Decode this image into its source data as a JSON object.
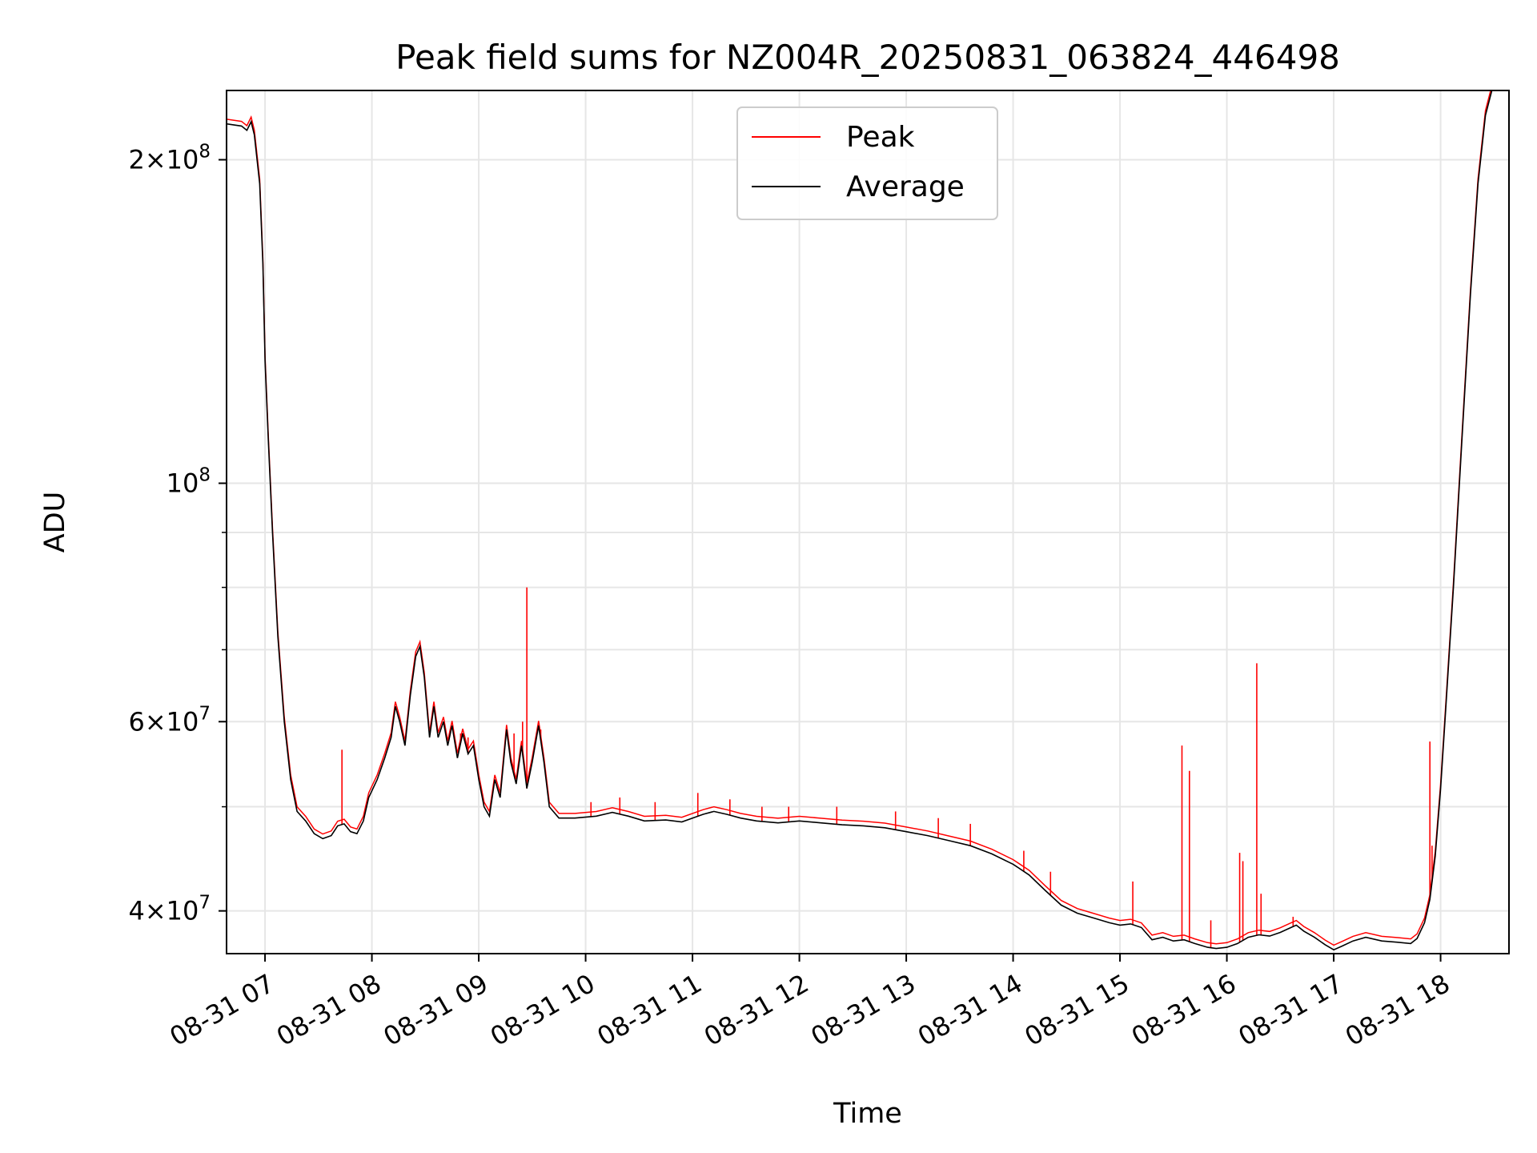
{
  "chart_data": {
    "type": "line",
    "title": "Peak field sums for NZ004R_20250831_063824_446498",
    "xlabel": "Time",
    "ylabel": "ADU",
    "yscale": "log",
    "xlim": [
      6.64,
      18.64
    ],
    "ylim": [
      36500000,
      232000000
    ],
    "grid": true,
    "legend_position": "upper center",
    "x_ticks": [
      {
        "value": 7,
        "label": "08-31 07"
      },
      {
        "value": 8,
        "label": "08-31 08"
      },
      {
        "value": 9,
        "label": "08-31 09"
      },
      {
        "value": 10,
        "label": "08-31 10"
      },
      {
        "value": 11,
        "label": "08-31 11"
      },
      {
        "value": 12,
        "label": "08-31 12"
      },
      {
        "value": 13,
        "label": "08-31 13"
      },
      {
        "value": 14,
        "label": "08-31 14"
      },
      {
        "value": 15,
        "label": "08-31 15"
      },
      {
        "value": 16,
        "label": "08-31 16"
      },
      {
        "value": 17,
        "label": "08-31 17"
      },
      {
        "value": 18,
        "label": "08-31 18"
      }
    ],
    "y_ticks": [
      {
        "value": 40000000,
        "base": "4",
        "exp": "7"
      },
      {
        "value": 60000000,
        "base": "6",
        "exp": "7"
      },
      {
        "value": 100000000,
        "base": "",
        "exp": "8"
      },
      {
        "value": 200000000,
        "base": "2",
        "exp": "8"
      }
    ],
    "y_minor_ticks": [
      50000000,
      70000000,
      80000000,
      90000000
    ],
    "series": [
      {
        "name": "Average",
        "color": "#000000",
        "points": [
          [
            6.64,
            216000000
          ],
          [
            6.78,
            215000000
          ],
          [
            6.83,
            213000000
          ],
          [
            6.87,
            217000000
          ],
          [
            6.9,
            211000000
          ],
          [
            6.95,
            190000000
          ],
          [
            6.98,
            160000000
          ],
          [
            7.0,
            130000000
          ],
          [
            7.03,
            110000000
          ],
          [
            7.07,
            90000000
          ],
          [
            7.12,
            72000000
          ],
          [
            7.18,
            60000000
          ],
          [
            7.24,
            53000000
          ],
          [
            7.3,
            49500000
          ],
          [
            7.38,
            48500000
          ],
          [
            7.46,
            47200000
          ],
          [
            7.54,
            46700000
          ],
          [
            7.62,
            47000000
          ],
          [
            7.68,
            48000000
          ],
          [
            7.74,
            48200000
          ],
          [
            7.8,
            47400000
          ],
          [
            7.86,
            47200000
          ],
          [
            7.92,
            48500000
          ],
          [
            7.97,
            51000000
          ],
          [
            8.05,
            53000000
          ],
          [
            8.12,
            55500000
          ],
          [
            8.18,
            58000000
          ],
          [
            8.22,
            62000000
          ],
          [
            8.26,
            60000000
          ],
          [
            8.31,
            57000000
          ],
          [
            8.36,
            63500000
          ],
          [
            8.41,
            69000000
          ],
          [
            8.45,
            70500000
          ],
          [
            8.49,
            66000000
          ],
          [
            8.54,
            58000000
          ],
          [
            8.58,
            62000000
          ],
          [
            8.62,
            58000000
          ],
          [
            8.67,
            60000000
          ],
          [
            8.71,
            57000000
          ],
          [
            8.75,
            59500000
          ],
          [
            8.8,
            55500000
          ],
          [
            8.85,
            58500000
          ],
          [
            8.9,
            56000000
          ],
          [
            8.95,
            57000000
          ],
          [
            9.0,
            53000000
          ],
          [
            9.05,
            50000000
          ],
          [
            9.1,
            49000000
          ],
          [
            9.15,
            53000000
          ],
          [
            9.2,
            51000000
          ],
          [
            9.26,
            59000000
          ],
          [
            9.3,
            55000000
          ],
          [
            9.35,
            52500000
          ],
          [
            9.4,
            57000000
          ],
          [
            9.45,
            52000000
          ],
          [
            9.5,
            55000000
          ],
          [
            9.56,
            59500000
          ],
          [
            9.61,
            55000000
          ],
          [
            9.66,
            50000000
          ],
          [
            9.75,
            48800000
          ],
          [
            9.9,
            48800000
          ],
          [
            10.1,
            49000000
          ],
          [
            10.25,
            49400000
          ],
          [
            10.4,
            49000000
          ],
          [
            10.55,
            48500000
          ],
          [
            10.75,
            48600000
          ],
          [
            10.9,
            48400000
          ],
          [
            11.0,
            48800000
          ],
          [
            11.1,
            49200000
          ],
          [
            11.2,
            49500000
          ],
          [
            11.32,
            49200000
          ],
          [
            11.45,
            48800000
          ],
          [
            11.6,
            48500000
          ],
          [
            11.8,
            48300000
          ],
          [
            12.0,
            48500000
          ],
          [
            12.2,
            48300000
          ],
          [
            12.4,
            48100000
          ],
          [
            12.6,
            48000000
          ],
          [
            12.8,
            47800000
          ],
          [
            13.0,
            47400000
          ],
          [
            13.2,
            47000000
          ],
          [
            13.4,
            46500000
          ],
          [
            13.6,
            46000000
          ],
          [
            13.8,
            45200000
          ],
          [
            14.0,
            44200000
          ],
          [
            14.15,
            43200000
          ],
          [
            14.3,
            41800000
          ],
          [
            14.45,
            40500000
          ],
          [
            14.6,
            39800000
          ],
          [
            14.75,
            39400000
          ],
          [
            14.9,
            39000000
          ],
          [
            15.0,
            38800000
          ],
          [
            15.1,
            38900000
          ],
          [
            15.2,
            38600000
          ],
          [
            15.3,
            37600000
          ],
          [
            15.4,
            37800000
          ],
          [
            15.5,
            37500000
          ],
          [
            15.6,
            37600000
          ],
          [
            15.7,
            37300000
          ],
          [
            15.82,
            37000000
          ],
          [
            15.9,
            36900000
          ],
          [
            16.0,
            37000000
          ],
          [
            16.1,
            37300000
          ],
          [
            16.2,
            37800000
          ],
          [
            16.3,
            38000000
          ],
          [
            16.4,
            37900000
          ],
          [
            16.5,
            38200000
          ],
          [
            16.6,
            38600000
          ],
          [
            16.65,
            38800000
          ],
          [
            16.72,
            38300000
          ],
          [
            16.82,
            37800000
          ],
          [
            16.92,
            37200000
          ],
          [
            17.0,
            36800000
          ],
          [
            17.08,
            37100000
          ],
          [
            17.18,
            37500000
          ],
          [
            17.3,
            37800000
          ],
          [
            17.45,
            37500000
          ],
          [
            17.6,
            37400000
          ],
          [
            17.72,
            37300000
          ],
          [
            17.78,
            37700000
          ],
          [
            17.85,
            39000000
          ],
          [
            17.9,
            41000000
          ],
          [
            17.95,
            45000000
          ],
          [
            18.0,
            52000000
          ],
          [
            18.05,
            62000000
          ],
          [
            18.12,
            80000000
          ],
          [
            18.2,
            110000000
          ],
          [
            18.28,
            150000000
          ],
          [
            18.35,
            190000000
          ],
          [
            18.42,
            220000000
          ],
          [
            18.48,
            232000000
          ],
          [
            18.64,
            232000000
          ]
        ]
      },
      {
        "name": "Peak",
        "color": "#ff0000",
        "spikes": [
          [
            7.72,
            56500000
          ],
          [
            9.45,
            80000000
          ],
          [
            9.41,
            60000000
          ],
          [
            9.33,
            58500000
          ],
          [
            9.58,
            59000000
          ],
          [
            8.9,
            58000000
          ],
          [
            8.83,
            58500000
          ],
          [
            10.05,
            50500000
          ],
          [
            10.32,
            51000000
          ],
          [
            10.65,
            50500000
          ],
          [
            11.05,
            51500000
          ],
          [
            11.35,
            50800000
          ],
          [
            11.65,
            50000000
          ],
          [
            11.9,
            50000000
          ],
          [
            12.35,
            50000000
          ],
          [
            12.9,
            49500000
          ],
          [
            13.3,
            48800000
          ],
          [
            13.6,
            48200000
          ],
          [
            14.1,
            45500000
          ],
          [
            14.35,
            43500000
          ],
          [
            15.12,
            42600000
          ],
          [
            15.58,
            57000000
          ],
          [
            15.65,
            54000000
          ],
          [
            15.85,
            39200000
          ],
          [
            16.12,
            45300000
          ],
          [
            16.15,
            44500000
          ],
          [
            16.28,
            68000000
          ],
          [
            16.32,
            41500000
          ],
          [
            16.62,
            39500000
          ],
          [
            17.9,
            57500000
          ],
          [
            17.92,
            46000000
          ]
        ]
      }
    ]
  },
  "legend": [
    {
      "label": "Peak",
      "color": "#ff0000"
    },
    {
      "label": "Average",
      "color": "#000000"
    }
  ]
}
